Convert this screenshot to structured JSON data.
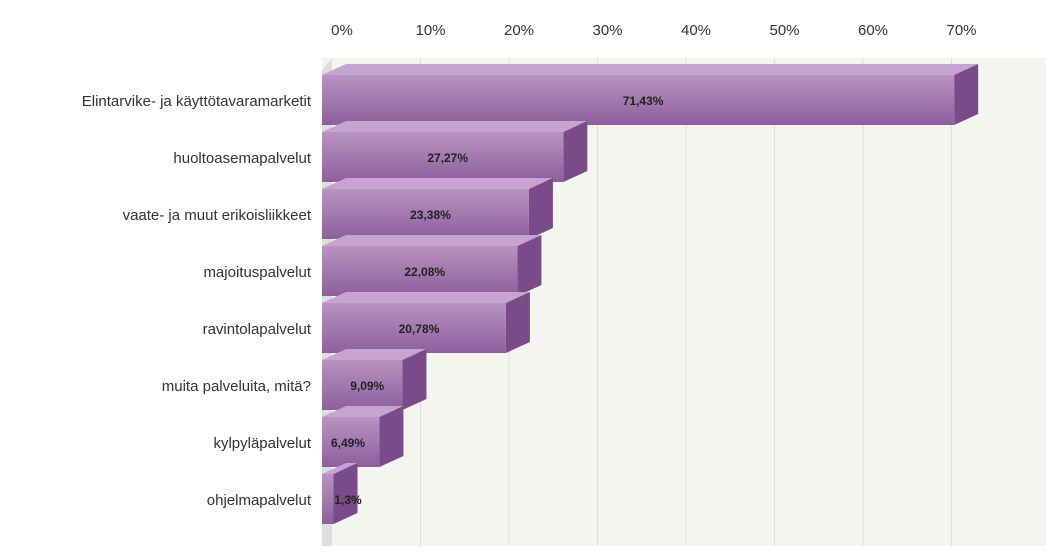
{
  "chart_data": {
    "type": "bar",
    "orientation": "horizontal",
    "title": "",
    "xlabel": "",
    "ylabel": "",
    "xlim": [
      0,
      75
    ],
    "ticks": [
      {
        "value": 0,
        "label": "0%"
      },
      {
        "value": 10,
        "label": "10%"
      },
      {
        "value": 20,
        "label": "20%"
      },
      {
        "value": 30,
        "label": "30%"
      },
      {
        "value": 40,
        "label": "40%"
      },
      {
        "value": 50,
        "label": "50%"
      },
      {
        "value": 60,
        "label": "60%"
      },
      {
        "value": 70,
        "label": "70%"
      }
    ],
    "grid": true,
    "legend": "none",
    "categories": [
      "Elintarvike- ja käyttötavaramarketit",
      "huoltoasemapalvelut",
      "vaate- ja muut erikoisliikkeet",
      "majoituspalvelut",
      "ravintolapalvelut",
      "muita palveluita, mitä?",
      "kylpyläpalvelut",
      "ohjelmapalvelut"
    ],
    "values": [
      71.43,
      27.27,
      23.38,
      22.08,
      20.78,
      9.09,
      6.49,
      1.3
    ],
    "value_labels": [
      "71,43%",
      "27,27%",
      "23,38%",
      "22,08%",
      "20,78%",
      "9,09%",
      "6,49%",
      "1,3%"
    ],
    "colors": {
      "bar_top": "#b893c2",
      "bar_bottom": "#8e5e9c",
      "bar_side": "#7a4a89",
      "bar_cap": "#c7a3d0",
      "plot_background": "#f4f4f1",
      "grid": "#dedede"
    }
  }
}
